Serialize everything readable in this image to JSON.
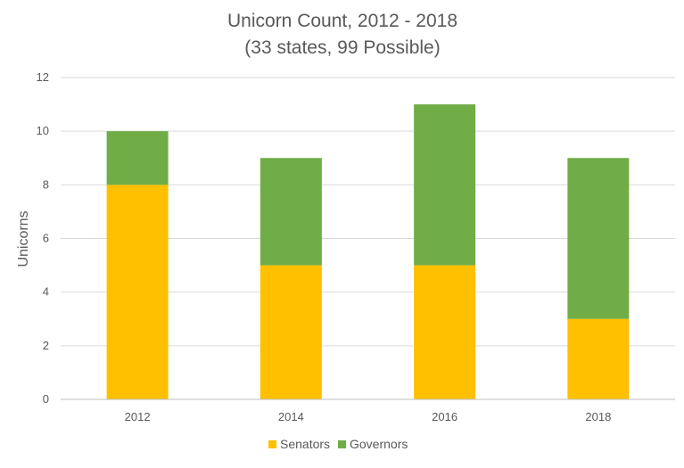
{
  "chart_data": {
    "type": "bar",
    "stacked": true,
    "title": "Unicorn Count, 2012 - 2018",
    "subtitle": "(33 states, 99 Possible)",
    "xlabel": "",
    "ylabel": "Unicorns",
    "categories": [
      "2012",
      "2014",
      "2016",
      "2018"
    ],
    "series": [
      {
        "name": "Senators",
        "values": [
          8,
          5,
          5,
          3
        ],
        "color": "#FFC000"
      },
      {
        "name": "Governors",
        "values": [
          2,
          4,
          6,
          6
        ],
        "color": "#70AD47"
      }
    ],
    "ylim": [
      0,
      12
    ],
    "yticks": [
      "0",
      "2",
      "4",
      "6",
      "8",
      "10",
      "12"
    ],
    "grid": true,
    "legend_position": "bottom",
    "gridline_color": "#D9D9D9",
    "axis_color": "#BFBFBF"
  }
}
